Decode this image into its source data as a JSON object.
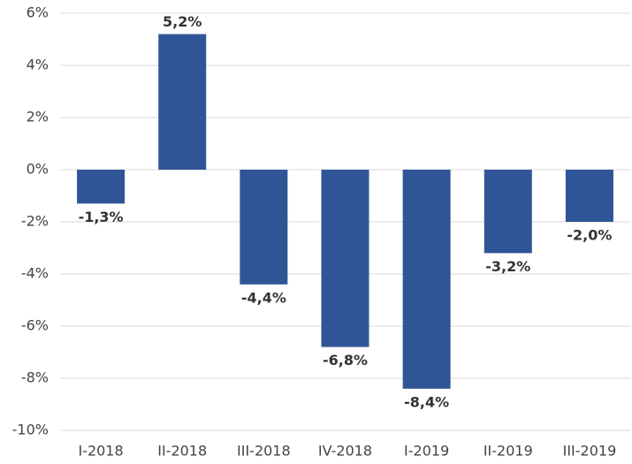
{
  "chart_data": {
    "type": "bar",
    "categories": [
      "I-2018",
      "II-2018",
      "III-2018",
      "IV-2018",
      "I-2019",
      "II-2019",
      "III-2019"
    ],
    "values": [
      -1.3,
      5.2,
      -4.4,
      -6.8,
      -8.4,
      -3.2,
      -2.0
    ],
    "value_labels": [
      "-1,3%",
      "5,2%",
      "-4,4%",
      "-6,8%",
      "-8,4%",
      "-3,2%",
      "-2,0%"
    ],
    "color": "#2f5597",
    "ylim": [
      -10,
      6
    ],
    "yticks": [
      {
        "value": -10,
        "label": "-10%"
      },
      {
        "value": -8,
        "label": "-8%"
      },
      {
        "value": -6,
        "label": "-6%"
      },
      {
        "value": -4,
        "label": "-4%"
      },
      {
        "value": -2,
        "label": "-2%"
      },
      {
        "value": 0,
        "label": "0%"
      },
      {
        "value": 2,
        "label": "2%"
      },
      {
        "value": 4,
        "label": "4%"
      },
      {
        "value": 6,
        "label": "6%"
      }
    ],
    "grid": true
  }
}
